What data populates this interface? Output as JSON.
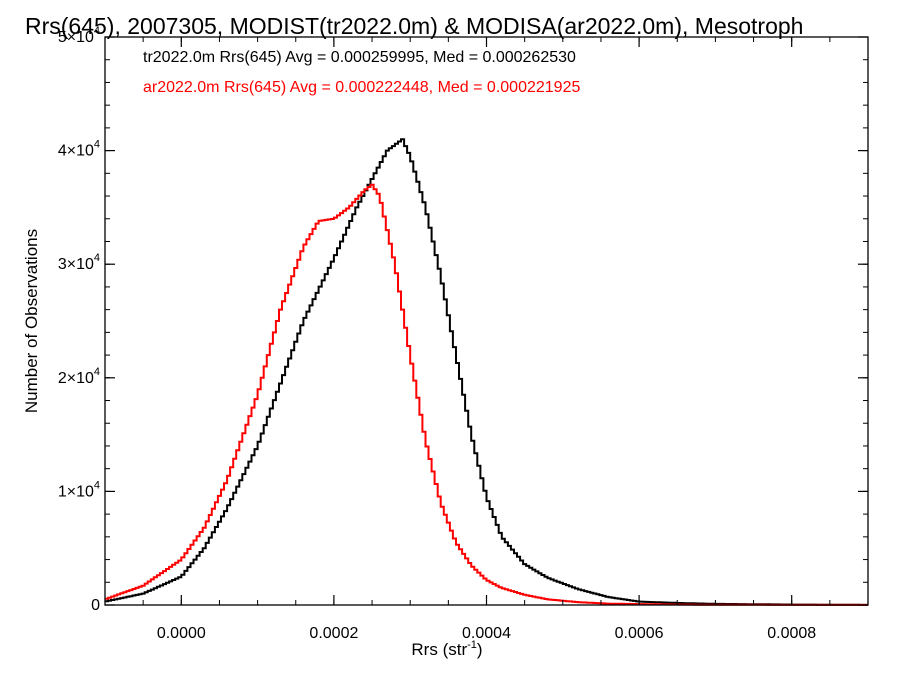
{
  "chart_data": {
    "type": "line",
    "title": "Rrs(645), 2007305, MODIST(tr2022.0m) & MODISA(ar2022.0m), Mesotroph",
    "xlabel": "Rrs (str",
    "xlabel_exponent": "-1",
    "xlabel_close": ")",
    "ylabel": "Number of Observations",
    "xlim": [
      -0.0001,
      0.0009
    ],
    "ylim": [
      0,
      50000
    ],
    "x_ticks": [
      0.0,
      0.0002,
      0.0004,
      0.0006,
      0.0008
    ],
    "x_tick_labels": [
      "0.0000",
      "0.0002",
      "0.0004",
      "0.0006",
      "0.0008"
    ],
    "y_ticks": [
      0,
      10000,
      20000,
      30000,
      40000,
      50000
    ],
    "y_tick_labels": [
      {
        "mantissa": "0",
        "exponent": ""
      },
      {
        "mantissa": "1×10",
        "exponent": "4"
      },
      {
        "mantissa": "2×10",
        "exponent": "4"
      },
      {
        "mantissa": "3×10",
        "exponent": "4"
      },
      {
        "mantissa": "4×10",
        "exponent": "4"
      },
      {
        "mantissa": "5×10",
        "exponent": "4"
      }
    ],
    "grid": false,
    "legend_position": "top-left",
    "annotations": [
      {
        "text": "tr2022.0m Rrs(645) Avg = 0.000259995, Med = 0.000262530",
        "color": "#000000"
      },
      {
        "text": "ar2022.0m Rrs(645) Avg = 0.000222448, Med = 0.000221925",
        "color": "#ff0000"
      }
    ],
    "series": [
      {
        "color": "#000000",
        "x": [
          -0.0001,
          -5e-05,
          0.0,
          3e-05,
          6e-05,
          0.0001,
          0.00013,
          0.00016,
          0.0002,
          0.00023,
          0.00025,
          0.00027,
          0.00029,
          0.0003,
          0.00032,
          0.00034,
          0.00036,
          0.00038,
          0.0004,
          0.00042,
          0.00045,
          0.00048,
          0.00052,
          0.00056,
          0.0006,
          0.00065,
          0.0007,
          0.0008,
          0.0009
        ],
        "y": [
          300,
          1000,
          2500,
          5000,
          8500,
          14000,
          19500,
          25000,
          30500,
          35000,
          37500,
          40000,
          41000,
          39500,
          35000,
          29000,
          22000,
          15000,
          9500,
          6000,
          3600,
          2400,
          1400,
          700,
          300,
          180,
          100,
          40,
          10
        ]
      },
      {
        "color": "#ff0000",
        "x": [
          -0.0001,
          -5e-05,
          0.0,
          3e-05,
          6e-05,
          0.0001,
          0.00013,
          0.00016,
          0.00018,
          0.0002,
          0.00022,
          0.00024,
          0.00025,
          0.00026,
          0.00028,
          0.0003,
          0.00032,
          0.00034,
          0.00036,
          0.00038,
          0.0004,
          0.00042,
          0.00045,
          0.00048,
          0.00052,
          0.00056,
          0.0006,
          0.00065,
          0.0007,
          0.0008,
          0.0009
        ],
        "y": [
          500,
          1700,
          4000,
          6800,
          11000,
          18500,
          26000,
          31500,
          33800,
          34000,
          35000,
          36500,
          37000,
          36000,
          30000,
          22000,
          14500,
          9000,
          5500,
          3500,
          2200,
          1500,
          900,
          500,
          250,
          120,
          80,
          40,
          20,
          10,
          5
        ]
      }
    ]
  }
}
